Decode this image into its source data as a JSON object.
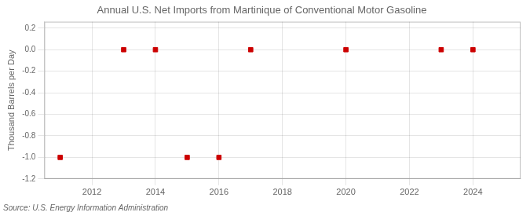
{
  "chart_data": {
    "type": "scatter",
    "title": "Annual U.S. Net Imports from Martinique of Conventional Motor Gasoline",
    "y_label": "Thousand Barrels per Day",
    "annotations": [
      "Source: U.S. Energy Information Administration"
    ],
    "x": [
      2011,
      2013,
      2014,
      2015,
      2016,
      2017,
      2020,
      2023,
      2024
    ],
    "values": [
      -1.0,
      0.0,
      0.0,
      -1.0,
      -1.0,
      0.0,
      0.0,
      0.0,
      0.0
    ],
    "color": "#cc0000",
    "marker": "square",
    "xlim": [
      2010.5,
      2025.5
    ],
    "xticks": [
      2012,
      2014,
      2016,
      2018,
      2020,
      2022,
      2024
    ],
    "ylim": [
      -1.2,
      0.26
    ],
    "yticks": [
      0.2,
      {
        "value": 0,
        "label": "0.0"
      },
      -0.2,
      -0.4,
      -0.6,
      -0.8,
      {
        "value": -1,
        "label": "-1.0"
      },
      -1.2
    ],
    "grid": true
  }
}
